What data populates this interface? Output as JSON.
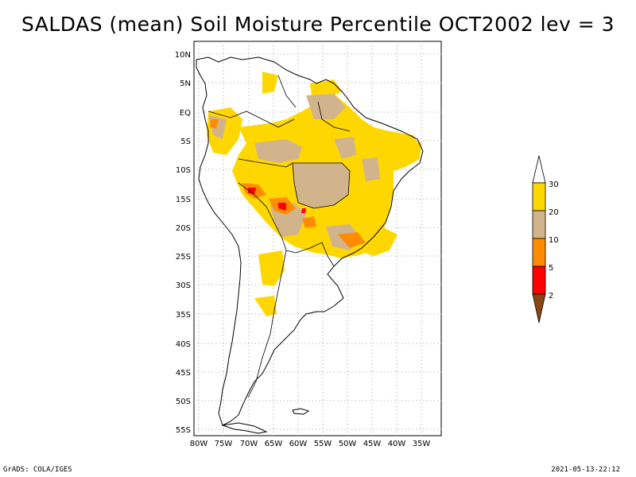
{
  "title": "SALDAS (mean) Soil Moisture Percentile OCT2002 lev = 3",
  "axes": {
    "lat_labels": [
      "10N",
      "5N",
      "EQ",
      "5S",
      "10S",
      "15S",
      "20S",
      "25S",
      "30S",
      "35S",
      "40S",
      "45S",
      "50S",
      "55S"
    ],
    "lon_labels": [
      "80W",
      "75W",
      "70W",
      "65W",
      "60W",
      "55W",
      "50W",
      "45W",
      "40W",
      "35W"
    ]
  },
  "legend": {
    "labels": [
      "2",
      "5",
      "10",
      "20",
      "30"
    ],
    "colors": [
      "#8B4513",
      "#ff0000",
      "#ff8c00",
      "#d2b48c",
      "#ffd700",
      "#ffffff"
    ]
  },
  "footer": {
    "left": "GrADS: COLA/IGES",
    "right": "2021-05-13-22:12"
  }
}
